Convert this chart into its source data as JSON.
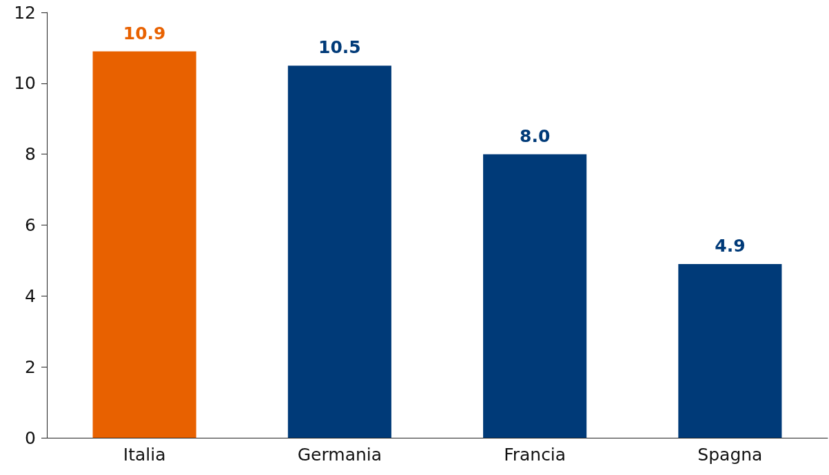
{
  "chart_data": {
    "type": "bar",
    "categories": [
      "Italia",
      "Germania",
      "Francia",
      "Spagna"
    ],
    "values": [
      10.9,
      10.5,
      8.0,
      4.9
    ],
    "colors": [
      "#e86100",
      "#003a78",
      "#003a78",
      "#003a78"
    ],
    "value_labels": [
      "10.9",
      "10.5",
      "8.0",
      "4.9"
    ],
    "ylim": [
      0,
      12
    ],
    "yticks": [
      0,
      2,
      4,
      6,
      8,
      10,
      12
    ],
    "grid": false
  }
}
